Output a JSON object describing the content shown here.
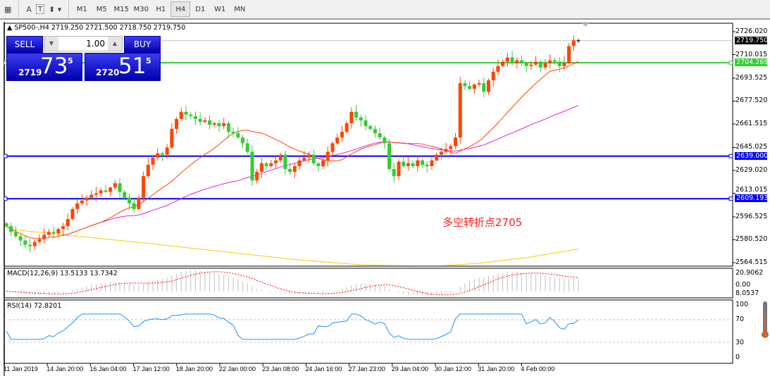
{
  "toolbar": {
    "timeframes": [
      "M1",
      "M5",
      "M15",
      "M30",
      "H1",
      "H4",
      "D1",
      "W1",
      "MN"
    ],
    "active": "H4",
    "text_tool": "A",
    "textbox_tool": "T"
  },
  "symbol": {
    "header": "SP500-,H4  2719.250 2721.500 2718.750 2719.750"
  },
  "trade": {
    "sell": "SELL",
    "buy": "BUY",
    "volume": "1.00",
    "bid_big": "2719",
    "bid_main": "73",
    "bid_sup": "5",
    "ask_big": "2720",
    "ask_main": "51",
    "ask_sup": "5"
  },
  "colors": {
    "bull": "#ff4500",
    "bear": "#33cc33",
    "ma_fast": "#ff4500",
    "ma_slow": "#e020e0",
    "ma_long": "#ffc800",
    "hline_green": "#33cc33",
    "hline_blue": "#0000ff",
    "macd_signal": "#ff0000",
    "rsi": "#1e90ff"
  },
  "price_axis": [
    "2726.020",
    "2710.015",
    "2693.525",
    "2677.520",
    "2661.515",
    "2645.025",
    "2629.020",
    "2613.015",
    "2596.525",
    "2580.520",
    "2564.515"
  ],
  "levels": [
    {
      "price": 2719.75,
      "label": "2719.750",
      "kind": "current"
    },
    {
      "price": 2704.269,
      "label": "2704.269",
      "kind": "green"
    },
    {
      "price": 2639.0,
      "label": "2639.000",
      "kind": "blue"
    },
    {
      "price": 2609.193,
      "label": "2609.193",
      "kind": "blue"
    }
  ],
  "annotation": "多空转折点2705",
  "closes": [
    2590,
    2586,
    2583,
    2580,
    2577,
    2576,
    2579,
    2581,
    2584,
    2586,
    2585,
    2588,
    2590,
    2595,
    2602,
    2606,
    2608,
    2610,
    2612,
    2613,
    2615,
    2614,
    2617,
    2620,
    2614,
    2610,
    2606,
    2602,
    2610,
    2625,
    2633,
    2638,
    2641,
    2640,
    2645,
    2658,
    2665,
    2670,
    2668,
    2667,
    2665,
    2663,
    2664,
    2661,
    2662,
    2660,
    2662,
    2656,
    2655,
    2652,
    2648,
    2642,
    2622,
    2628,
    2634,
    2632,
    2634,
    2636,
    2640,
    2630,
    2628,
    2632,
    2636,
    2638,
    2640,
    2634,
    2632,
    2636,
    2642,
    2648,
    2652,
    2656,
    2662,
    2670,
    2666,
    2664,
    2660,
    2658,
    2655,
    2652,
    2648,
    2630,
    2625,
    2635,
    2632,
    2634,
    2632,
    2636,
    2633,
    2632,
    2636,
    2640,
    2642,
    2644,
    2646,
    2652,
    2690,
    2688,
    2686,
    2689,
    2690,
    2684,
    2692,
    2698,
    2702,
    2705,
    2708,
    2704,
    2706,
    2704,
    2702,
    2703,
    2705,
    2701,
    2704,
    2706,
    2705,
    2702,
    2704,
    2716,
    2720,
    2719.75
  ],
  "ma_long": [
    [
      0,
      2588
    ],
    [
      30,
      2578
    ],
    [
      60,
      2567
    ],
    [
      75,
      2563
    ],
    [
      90,
      2562
    ],
    [
      100,
      2564
    ],
    [
      110,
      2568
    ],
    [
      121,
      2574
    ]
  ],
  "macd": {
    "label": "MACD(12,26,9) 13.5133 13.7342",
    "axis": [
      "20.9062",
      "0.00",
      "8.0537"
    ]
  },
  "rsi": {
    "label": "RSI(14) 72.8201",
    "axis": [
      "100",
      "70",
      "30",
      "0"
    ]
  },
  "time_axis": [
    "11 Jan 2019",
    "14 Jan 20:00",
    "16 Jan 04:00",
    "17 Jan 12:00",
    "18 Jan 20:00",
    "22 Jan 00:00",
    "23 Jan 08:00",
    "24 Jan 16:00",
    "27 Jan 23:00",
    "29 Jan 04:00",
    "30 Jan 12:00",
    "31 Jan 20:00",
    "4 Feb 00:00"
  ]
}
